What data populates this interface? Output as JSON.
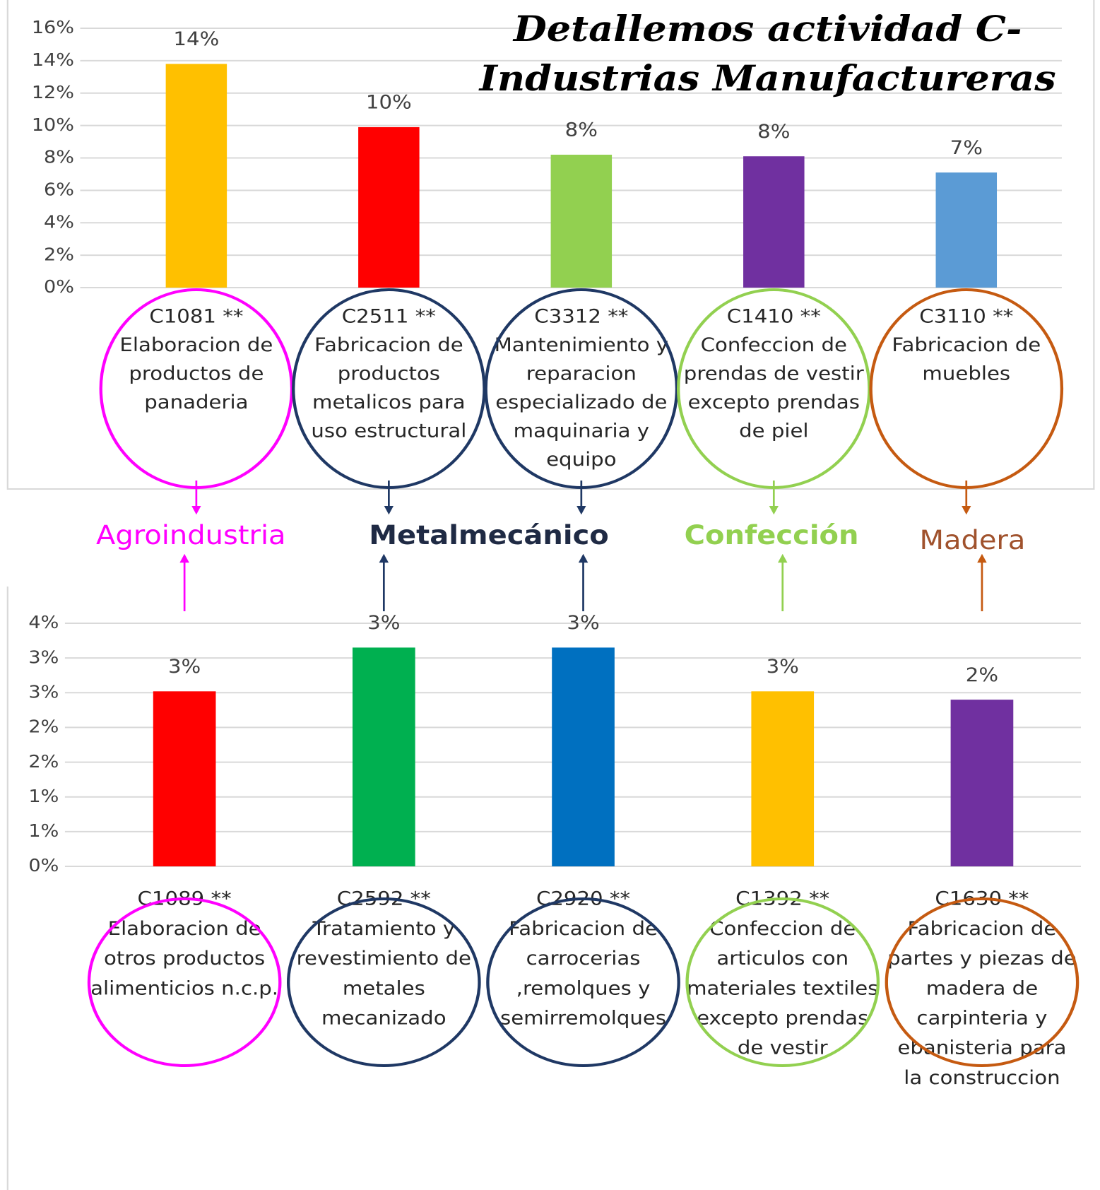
{
  "chart_data": [
    {
      "type": "bar",
      "title": [
        "Detallemos actividad C-",
        "Industrias Manufactureras"
      ],
      "categories": [
        [
          "C1081 **",
          "Elaboracion de",
          "productos de",
          "panaderia"
        ],
        [
          "C2511 **",
          "Fabricacion de",
          "productos",
          "metalicos para",
          "uso estructural"
        ],
        [
          "C3312 **",
          "Mantenimiento y",
          "reparacion",
          "especializado de",
          "maquinaria y",
          "equipo"
        ],
        [
          "C1410 **",
          "Confeccion de",
          "prendas de vestir",
          "excepto prendas",
          "de piel"
        ],
        [
          "C3110 **",
          "Fabricacion de",
          "muebles"
        ]
      ],
      "values": [
        13.8,
        9.9,
        8.2,
        8.1,
        7.1
      ],
      "value_labels": [
        "14%",
        "10%",
        "8%",
        "8%",
        "7%"
      ],
      "colors": [
        "#ffc000",
        "#ff0000",
        "#92d050",
        "#7030a0",
        "#5b9bd5"
      ],
      "outline_colors": [
        "#ff00ff",
        "#1f3864",
        "#1f3864",
        "#92d050",
        "#c55a11"
      ],
      "ylim": [
        0,
        16
      ],
      "yticks": [
        {
          "value": 0,
          "label": "0%"
        },
        {
          "value": 2,
          "label": "2%"
        },
        {
          "value": 4,
          "label": "4%"
        },
        {
          "value": 6,
          "label": "6%"
        },
        {
          "value": 8,
          "label": "8%"
        },
        {
          "value": 10,
          "label": "10%"
        },
        {
          "value": 12,
          "label": "12%"
        },
        {
          "value": 14,
          "label": "14%"
        },
        {
          "value": 16,
          "label": "16%"
        }
      ],
      "grid": true
    },
    {
      "type": "bar",
      "categories": [
        [
          "C1089 **",
          "Elaboracion de",
          "otros productos",
          "alimenticios n.c.p."
        ],
        [
          "C2592 **",
          "Tratamiento y",
          "revestimiento de",
          "metales",
          "mecanizado"
        ],
        [
          "C2920 **",
          "Fabricacion de",
          "carrocerias",
          ",remolques y",
          "semirremolques"
        ],
        [
          "C1392 **",
          "Confeccion de",
          "articulos con",
          "materiales textiles",
          "excepto prendas",
          "de vestir"
        ],
        [
          "C1630 **",
          "Fabricacion de",
          "partes y piezas de",
          "madera  de",
          "carpinteria y",
          "ebanisteria para",
          "la construccion"
        ]
      ],
      "values": [
        2.52,
        3.15,
        3.15,
        2.52,
        2.4
      ],
      "value_labels": [
        "3%",
        "3%",
        "3%",
        "3%",
        "2%"
      ],
      "colors": [
        "#ff0000",
        "#00b050",
        "#0070c0",
        "#ffc000",
        "#7030a0"
      ],
      "outline_colors": [
        "#ff00ff",
        "#1f3864",
        "#1f3864",
        "#92d050",
        "#c55a11"
      ],
      "ylim": [
        0,
        3.5
      ],
      "yticks": [
        {
          "value": 0,
          "label": "0%"
        },
        {
          "value": 0.5,
          "label": "1%"
        },
        {
          "value": 1,
          "label": "1%"
        },
        {
          "value": 1.5,
          "label": "2%"
        },
        {
          "value": 2,
          "label": "2%"
        },
        {
          "value": 2.5,
          "label": "3%"
        },
        {
          "value": 3,
          "label": "3%"
        },
        {
          "value": 3.5,
          "label": "4%"
        }
      ],
      "grid": true
    }
  ],
  "groups": [
    {
      "label": "Agroindustria",
      "color": "#ff00ff"
    },
    {
      "label": "Metalmecánico",
      "color": "#1f2a44"
    },
    {
      "label": "Confección",
      "color": "#92d050"
    },
    {
      "label": "Madera",
      "color": "#a0522d"
    }
  ]
}
